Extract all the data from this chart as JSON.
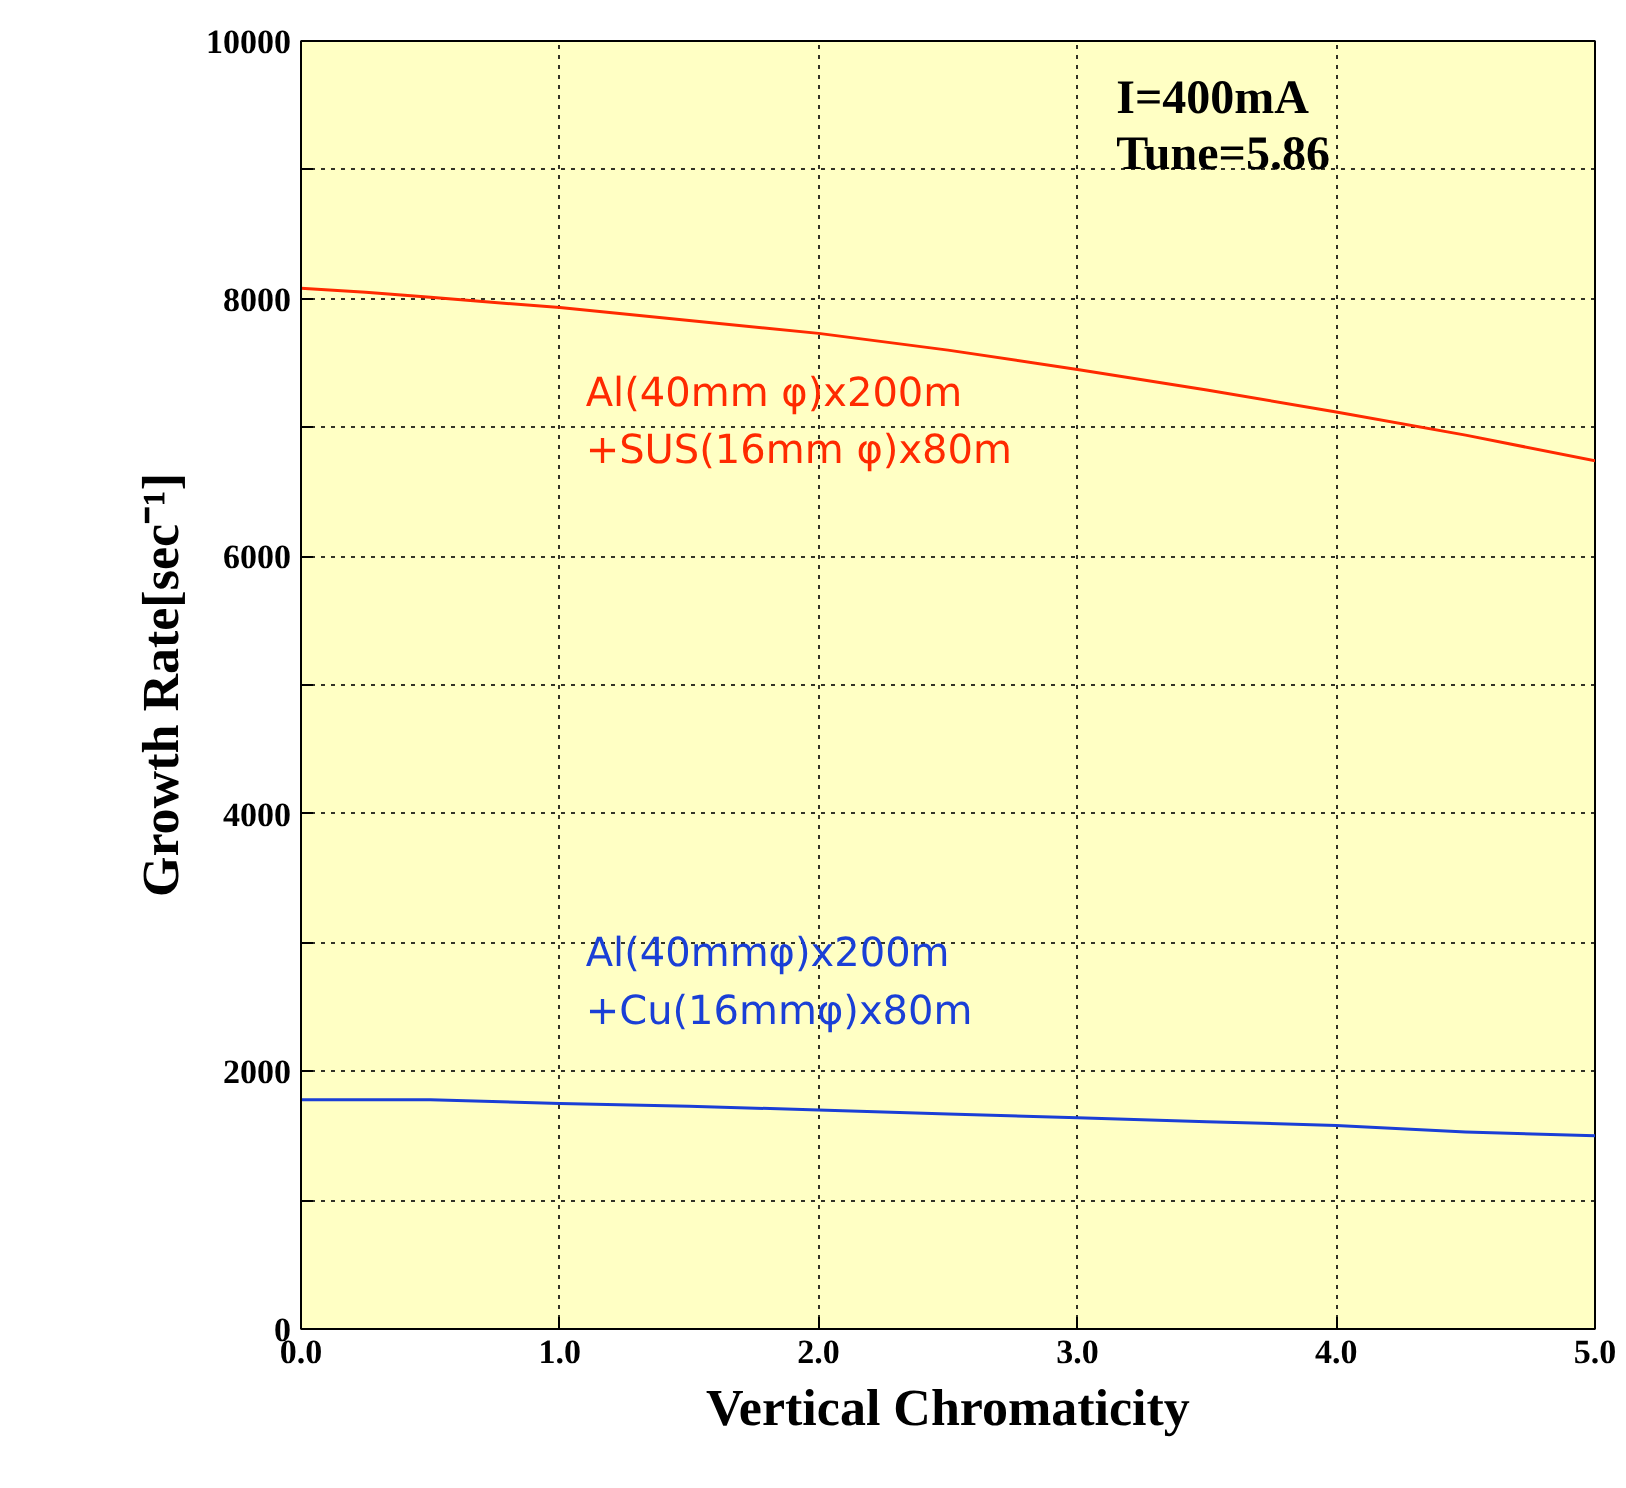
{
  "chart_data": {
    "type": "line",
    "xlabel": "Vertical Chromaticity",
    "ylabel": "Growth Rate[sec⁻¹]",
    "x": [
      0,
      0.25,
      0.5,
      1.0,
      1.5,
      2.0,
      2.5,
      3.0,
      3.5,
      4.0,
      4.5,
      5.0
    ],
    "series": [
      {
        "name": "Al(40mm φ)x200m\n+SUS(16mm φ)x80m",
        "color": "#ff2a00",
        "values": [
          8080,
          8050,
          8010,
          7930,
          7830,
          7730,
          7600,
          7450,
          7290,
          7120,
          6940,
          6740
        ]
      },
      {
        "name": "Al(40mmφ)x200m\n+Cu(16mmφ)x80m",
        "color": "#1a3fd6",
        "values": [
          1780,
          1780,
          1780,
          1750,
          1730,
          1700,
          1670,
          1640,
          1610,
          1580,
          1530,
          1500
        ]
      }
    ],
    "xlim": [
      0,
      5
    ],
    "ylim": [
      0,
      10000
    ],
    "xticks": [
      {
        "value": 0,
        "label": "0.0"
      },
      {
        "value": 1,
        "label": "1.0"
      },
      {
        "value": 2,
        "label": "2.0"
      },
      {
        "value": 3,
        "label": "3.0"
      },
      {
        "value": 4,
        "label": "4.0"
      },
      {
        "value": 5,
        "label": "5.0"
      }
    ],
    "yticks": [
      0,
      {
        "value": 1000,
        "label": null
      },
      2000,
      {
        "value": 3000,
        "label": null
      },
      4000,
      {
        "value": 5000,
        "label": null
      },
      6000,
      {
        "value": 7000,
        "label": null
      },
      8000,
      {
        "value": 9000,
        "label": null
      },
      10000
    ],
    "annotations": [
      "I=400mA",
      "Tune=5.86"
    ],
    "grid": true,
    "marker": "none",
    "line_style": "solid"
  }
}
